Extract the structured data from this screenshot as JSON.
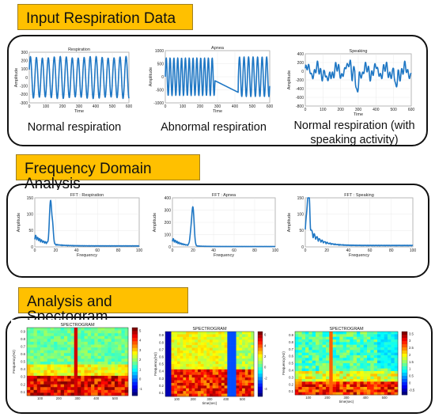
{
  "sections": {
    "input": {
      "title": "Input Respiration Data"
    },
    "frequency": {
      "title": "Frequency Domain Analysis"
    },
    "spectrogram": {
      "title": "Analysis and Spectogram"
    }
  },
  "colors": {
    "header_bg": "#ffc000",
    "signal": "#1f77c4",
    "axes": "#333333"
  },
  "captions": {
    "normal": "Normal respiration",
    "abnormal": "Abnormal respiration",
    "speaking_line1": "Normal respiration (with",
    "speaking_line2": "speaking activity)"
  },
  "chart_data": [
    {
      "type": "line",
      "title": "Respiration",
      "xlabel": "Time",
      "ylabel": "Amplitude",
      "xlim": [
        0,
        600
      ],
      "ylim": [
        -300,
        300
      ],
      "xticks": [
        "0",
        "100",
        "200",
        "300",
        "400",
        "500",
        "600"
      ],
      "yticks": [
        "300",
        "200",
        "100",
        "0",
        "-100",
        "-200",
        "-300"
      ],
      "pattern": "regular sinusoidal breathing, about 17 cycles over 600 samples"
    },
    {
      "type": "line",
      "title": "Apnea",
      "xlabel": "Time",
      "ylabel": "Amplitude",
      "xlim": [
        0,
        600
      ],
      "ylim": [
        -1000,
        1000
      ],
      "xticks": [
        "0",
        "100",
        "200",
        "300",
        "400",
        "500",
        "600"
      ],
      "yticks": [
        "1000",
        "500",
        "0",
        "-500",
        "-1000"
      ],
      "pattern": "regular breathing 0-280, flat drift 280-420, regular breathing 420-600"
    },
    {
      "type": "line",
      "title": "Speaking",
      "xlabel": "Time",
      "ylabel": "Amplitude",
      "xlim": [
        0,
        600
      ],
      "ylim": [
        -800,
        400
      ],
      "xticks": [
        "0",
        "100",
        "200",
        "300",
        "400",
        "500",
        "600"
      ],
      "yticks": [
        "400",
        "200",
        "0",
        "-200",
        "-400",
        "-600",
        "-800"
      ],
      "pattern": "irregular breathing with speaking artifacts"
    },
    {
      "type": "line",
      "title": "FFT : Respiration",
      "xlabel": "Frequency",
      "ylabel": "Amplitude",
      "xlim": [
        0,
        100
      ],
      "ylim": [
        0,
        150
      ],
      "xticks": [
        "0",
        "20",
        "40",
        "60",
        "80",
        "100"
      ],
      "yticks": [
        "150",
        "100",
        "50",
        "0"
      ],
      "peak": {
        "x": 15,
        "y": 135
      }
    },
    {
      "type": "line",
      "title": "FFT : Apnea",
      "xlabel": "Frequency",
      "ylabel": "Amplitude",
      "xlim": [
        0,
        100
      ],
      "ylim": [
        0,
        400
      ],
      "xticks": [
        "0",
        "20",
        "40",
        "60",
        "80",
        "100"
      ],
      "yticks": [
        "400",
        "300",
        "200",
        "100",
        "0"
      ],
      "peak": {
        "x": 20,
        "y": 310
      }
    },
    {
      "type": "line",
      "title": "FFT : Speaking",
      "xlabel": "Frequency",
      "ylabel": "Amplitude",
      "xlim": [
        0,
        100
      ],
      "ylim": [
        0,
        150
      ],
      "xticks": [
        "0",
        "20",
        "40",
        "60",
        "80",
        "100"
      ],
      "yticks": [
        "150",
        "100",
        "50",
        "0"
      ],
      "peak": {
        "x": 3,
        "y": 145
      }
    },
    {
      "type": "heatmap",
      "title": "SPECTROGRAM",
      "xlabel": "",
      "ylabel": "Frequency(Hz)",
      "xticks": [
        "100",
        "200",
        "300",
        "400",
        "500"
      ],
      "yticks": [
        "0.9",
        "0.8",
        "0.7",
        "0.6",
        "0.5",
        "0.4",
        "0.3",
        "0.2",
        "0.1"
      ],
      "colorbar": [
        "5",
        "4",
        "3",
        "2",
        "1",
        "0",
        "-1"
      ]
    },
    {
      "type": "heatmap",
      "title": "SPECTROGRAM",
      "xlabel": "time(sec)",
      "ylabel": "Frequency(Hz)",
      "xticks": [
        "100",
        "200",
        "300",
        "400",
        "500"
      ],
      "yticks": [
        "0.9",
        "0.8",
        "0.7",
        "0.6",
        "0.5",
        "0.4",
        "0.3",
        "0.2",
        "0.1"
      ],
      "colorbar": [
        "6",
        "4",
        "2",
        "0",
        "-2",
        "-4"
      ]
    },
    {
      "type": "heatmap",
      "title": "SPECTROGRAM",
      "xlabel": "time(sec)",
      "ylabel": "Frequency(Hz)",
      "xticks": [
        "100",
        "200",
        "300",
        "400",
        "500"
      ],
      "yticks": [
        "0.9",
        "0.8",
        "0.7",
        "0.6",
        "0.5",
        "0.4",
        "0.3",
        "0.2",
        "0.1"
      ],
      "colorbar": [
        "3.5",
        "3",
        "2.5",
        "2",
        "1.5",
        "1",
        "0.5",
        "0",
        "-0.5"
      ]
    }
  ]
}
